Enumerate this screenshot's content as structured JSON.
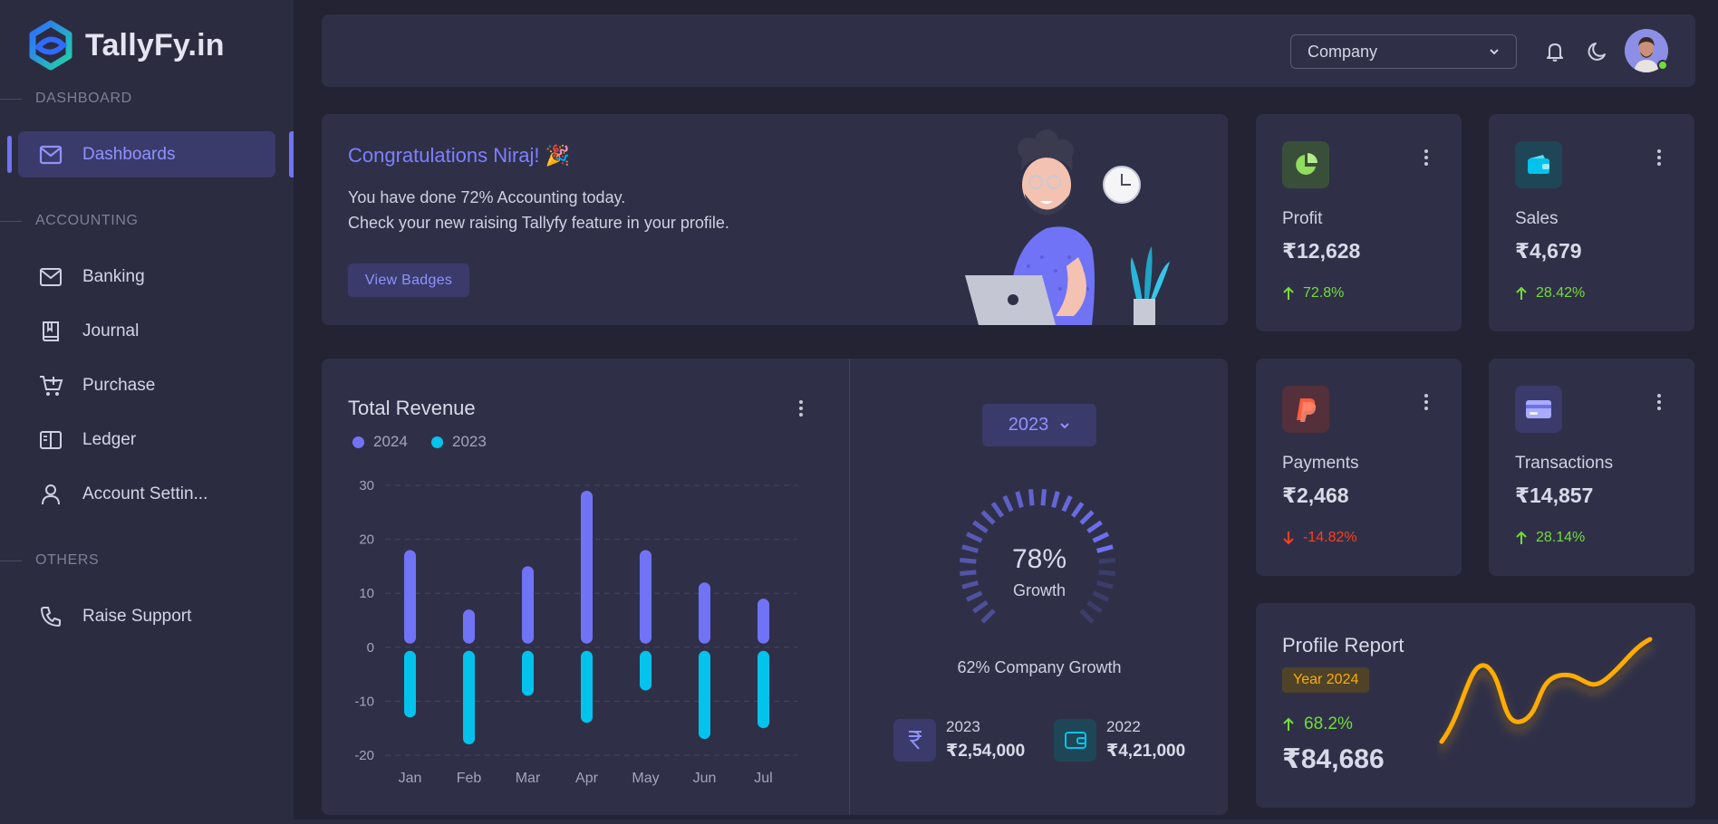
{
  "brand": {
    "name": "TallyFy.in"
  },
  "sidebar": {
    "sections": [
      {
        "label": "DASHBOARD"
      },
      {
        "label": "ACCOUNTING"
      },
      {
        "label": "OTHERS"
      }
    ],
    "items": [
      {
        "label": "Dashboards",
        "icon": "mail-icon"
      },
      {
        "label": "Banking",
        "icon": "mail-icon"
      },
      {
        "label": "Journal",
        "icon": "book-icon"
      },
      {
        "label": "Purchase",
        "icon": "cart-plus-icon"
      },
      {
        "label": "Ledger",
        "icon": "book-open-icon"
      },
      {
        "label": "Account Settin...",
        "icon": "user-icon"
      },
      {
        "label": "Raise Support",
        "icon": "phone-icon"
      }
    ]
  },
  "topbar": {
    "company_select": "Company",
    "icons": [
      "bell-icon",
      "moon-icon"
    ],
    "status": "online"
  },
  "welcome": {
    "title": "Congratulations Niraj! 🎉",
    "line1": "You have done 72% Accounting today.",
    "line2": "Check your new raising Tallyfy feature in your profile.",
    "button": "View Badges"
  },
  "stats": [
    {
      "label": "Profit",
      "value": "₹12,628",
      "change": "72.8%",
      "direction": "up",
      "icon": "pie-chart-icon",
      "color": "#71dd37"
    },
    {
      "label": "Sales",
      "value": "₹4,679",
      "change": "28.42%",
      "direction": "up",
      "icon": "wallet-icon",
      "color": "#03c3ec"
    },
    {
      "label": "Payments",
      "value": "₹2,468",
      "change": "-14.82%",
      "direction": "down",
      "icon": "paypal-icon",
      "color": "#ff3e1d"
    },
    {
      "label": "Transactions",
      "value": "₹14,857",
      "change": "28.14%",
      "direction": "up",
      "icon": "credit-card-icon",
      "color": "#7173f6"
    }
  ],
  "revenue": {
    "title": "Total Revenue",
    "legend": [
      "2024",
      "2023"
    ],
    "year_button": "2023",
    "gauge_percent": "78%",
    "gauge_label": "Growth",
    "company_growth": "62% Company Growth",
    "mini_stats": [
      {
        "year": "2023",
        "value": "₹2,54,000",
        "icon": "rupee-icon"
      },
      {
        "year": "2022",
        "value": "₹4,21,000",
        "icon": "wallet-icon"
      }
    ]
  },
  "chart_data": {
    "type": "bar",
    "categories": [
      "Jan",
      "Feb",
      "Mar",
      "Apr",
      "May",
      "Jun",
      "Jul"
    ],
    "series": [
      {
        "name": "2024",
        "values": [
          18,
          7,
          15,
          29,
          18,
          12,
          9
        ],
        "color": "#7173f6"
      },
      {
        "name": "2023",
        "values": [
          -13,
          -18,
          -9,
          -14,
          -8,
          -17,
          -15
        ],
        "color": "#03c3ec"
      }
    ],
    "yticks": [
      30,
      20,
      10,
      0,
      -10,
      -20
    ],
    "ylim": [
      -20,
      30
    ],
    "grid": true,
    "legend": "top-left"
  },
  "gauge": {
    "value": 78
  },
  "profile": {
    "title": "Profile Report",
    "badge": "Year 2024",
    "change": "68.2%",
    "value": "₹84,686"
  }
}
